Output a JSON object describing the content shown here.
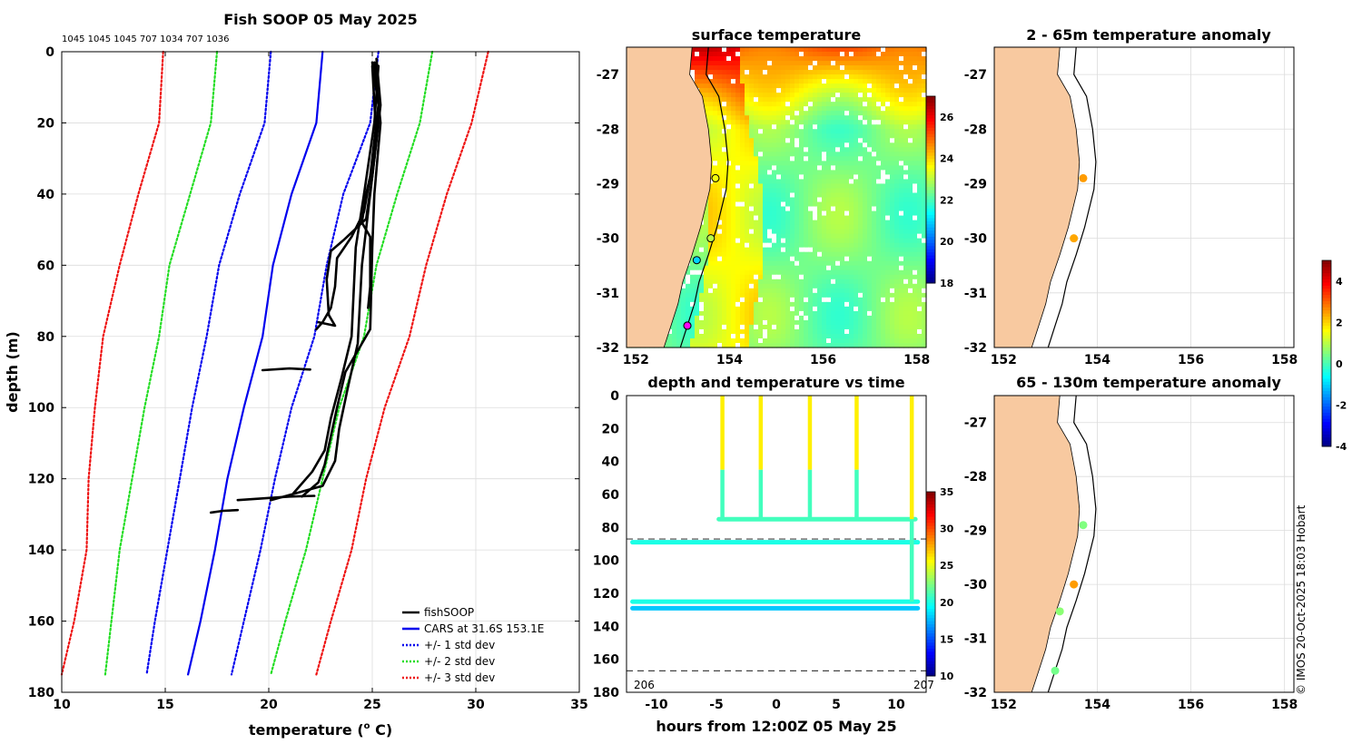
{
  "chart_data": [
    {
      "type": "line",
      "title": "Fish SOOP 05 May 2025",
      "subtitle_ids": "1045 1045 1045 707 1034 707 1036",
      "xlabel": "temperature (",
      "xlabel_sup": "o",
      "xlabel_end": " C)",
      "ylabel": "depth (m)",
      "xlim": [
        10,
        35
      ],
      "ylim": [
        0,
        180
      ],
      "xticks": [
        10,
        15,
        20,
        25,
        30,
        35
      ],
      "yticks": [
        0,
        20,
        40,
        60,
        80,
        100,
        120,
        140,
        160,
        180
      ],
      "legend": [
        "fishSOOP",
        "CARS at 31.6S 153.1E",
        "+/- 1 std dev",
        "+/- 2 std dev",
        "+/- 3 std dev"
      ],
      "colors": {
        "fishSOOP": "#000000",
        "cars": "#0000ee",
        "sd1": "#0000ee",
        "sd2": "#22dd22",
        "sd3": "#ee1111"
      },
      "series": [
        {
          "name": "CARS mean",
          "depth": [
            0,
            20,
            40,
            60,
            80,
            100,
            120,
            140,
            160,
            175
          ],
          "temp": [
            22.6,
            22.3,
            21.1,
            20.2,
            19.7,
            18.8,
            18.0,
            17.4,
            16.7,
            16.1
          ]
        },
        {
          "name": "+1 std",
          "depth": [
            0,
            20,
            40,
            60,
            80,
            100,
            120,
            140,
            160,
            175
          ],
          "temp": [
            25.3,
            24.9,
            23.6,
            22.8,
            22.2,
            21.1,
            20.3,
            19.6,
            18.8,
            18.2
          ]
        },
        {
          "name": "-1 std",
          "depth": [
            0,
            20,
            40,
            60,
            80,
            100,
            120,
            140,
            160,
            175
          ],
          "temp": [
            20.1,
            19.8,
            18.6,
            17.6,
            17.0,
            16.3,
            15.7,
            15.1,
            14.5,
            14.1
          ]
        },
        {
          "name": "+2 std",
          "depth": [
            0,
            20,
            40,
            60,
            80,
            100,
            120,
            140,
            160,
            175
          ],
          "temp": [
            27.9,
            27.3,
            26.2,
            25.2,
            24.6,
            23.4,
            22.6,
            21.8,
            20.8,
            20.1
          ]
        },
        {
          "name": "-2 std",
          "depth": [
            0,
            20,
            40,
            60,
            80,
            100,
            120,
            140,
            160,
            175
          ],
          "temp": [
            17.5,
            17.2,
            16.2,
            15.2,
            14.7,
            14.0,
            13.4,
            12.8,
            12.4,
            12.1
          ]
        },
        {
          "name": "+3 std",
          "depth": [
            0,
            20,
            40,
            60,
            80,
            100,
            120,
            140,
            160,
            175
          ],
          "temp": [
            30.6,
            29.8,
            28.6,
            27.6,
            26.8,
            25.6,
            24.7,
            24.0,
            23.0,
            22.3
          ]
        },
        {
          "name": "-3 std",
          "depth": [
            0,
            20,
            40,
            60,
            80,
            100,
            120,
            140,
            160,
            175
          ],
          "temp": [
            14.9,
            14.7,
            13.7,
            12.8,
            12.0,
            11.6,
            11.3,
            11.2,
            10.6,
            10.0
          ]
        },
        {
          "name": "fishSOOP profile 1",
          "depth": [
            3,
            15,
            35,
            45,
            52,
            58,
            66,
            72,
            76,
            78
          ],
          "temp": [
            25.0,
            25.3,
            24.9,
            24.6,
            24.0,
            23.3,
            23.2,
            23.0,
            22.6,
            22.3
          ]
        },
        {
          "name": "fishSOOP profile 2",
          "depth": [
            2,
            15,
            35,
            47,
            53,
            56,
            64,
            74,
            77,
            76
          ],
          "temp": [
            25.2,
            25.4,
            25.0,
            24.7,
            23.6,
            23.0,
            22.8,
            22.9,
            23.2,
            22.4
          ]
        },
        {
          "name": "fishSOOP profile 3",
          "depth": [
            3,
            15,
            30,
            40,
            48,
            52,
            58,
            66,
            72
          ],
          "temp": [
            25.2,
            25.3,
            25.1,
            24.7,
            24.5,
            24.9,
            24.9,
            24.9,
            24.8
          ]
        },
        {
          "name": "fishSOOP profile 4",
          "depth": [
            3,
            20,
            40,
            55,
            78,
            90,
            100,
            108,
            116,
            121,
            125
          ],
          "temp": [
            25.1,
            25.4,
            25.1,
            25.0,
            24.9,
            23.7,
            23.3,
            23.0,
            22.7,
            22.4,
            21.6
          ]
        },
        {
          "name": "fishSOOP profile 5",
          "depth": [
            4,
            20,
            40,
            55,
            80,
            92,
            103,
            112,
            118,
            124
          ],
          "temp": [
            25.3,
            25.1,
            24.6,
            24.2,
            24.0,
            23.5,
            23.0,
            22.7,
            22.1,
            21.2
          ]
        },
        {
          "name": "fishSOOP profile 6",
          "depth": [
            4,
            25,
            45,
            60,
            82,
            95,
            106,
            115,
            122,
            126
          ],
          "temp": [
            25.0,
            25.2,
            24.8,
            24.5,
            24.3,
            23.8,
            23.4,
            23.2,
            22.6,
            20.1
          ]
        },
        {
          "name": "fishSOOP bottom 89m",
          "depth": [
            89.5,
            89.0,
            89.3
          ],
          "temp": [
            19.7,
            21.0,
            22.0
          ]
        },
        {
          "name": "fishSOOP bottom 125m",
          "depth": [
            126,
            125,
            124.8
          ],
          "temp": [
            18.5,
            21.0,
            22.2
          ]
        },
        {
          "name": "fishSOOP bottom 129m",
          "depth": [
            129.5,
            129.0,
            128.8
          ],
          "temp": [
            17.2,
            17.8,
            18.5
          ]
        }
      ]
    },
    {
      "type": "heatmap",
      "title": "surface temperature",
      "xticks": [
        152,
        154,
        156,
        158
      ],
      "yticks": [
        -27,
        -28,
        -29,
        -30,
        -31,
        -32
      ],
      "xlim": [
        151.8,
        158.2
      ],
      "ylim": [
        -32,
        -26.5
      ],
      "colorbar": {
        "min": 18,
        "max": 27,
        "ticks": [
          18,
          20,
          22,
          24,
          26
        ]
      },
      "stations": [
        {
          "lon": 153.7,
          "lat": -28.9,
          "temp": 23.5
        },
        {
          "lon": 153.6,
          "lat": -30.0,
          "temp": 23.0
        },
        {
          "lon": 153.3,
          "lat": -30.4,
          "temp": 21.0
        },
        {
          "lon": 153.1,
          "lat": -31.6,
          "temp": 22.0
        }
      ]
    },
    {
      "type": "scatter",
      "title": "depth and temperature vs time",
      "xlabel": "hours from 12:00Z 05 May 25",
      "xticks": [
        -10,
        -5,
        0,
        5,
        10
      ],
      "yticks": [
        0,
        20,
        40,
        60,
        80,
        100,
        120,
        140,
        160,
        180
      ],
      "xlim": [
        -12.5,
        12.5
      ],
      "ylim": [
        0,
        180
      ],
      "dashed_depths": [
        87,
        167
      ],
      "day_labels": [
        "206",
        "207"
      ],
      "colorbar": {
        "min": 10,
        "max": 35,
        "ticks": [
          10,
          15,
          20,
          25,
          30,
          35
        ]
      },
      "tracks": [
        {
          "name": "shallow tow",
          "hours": [
            -4.8,
            11.6
          ],
          "depth": 75,
          "temp": 21
        },
        {
          "name": "89m line",
          "hours": [
            -12.0,
            11.8
          ],
          "depth": 89,
          "temp": 20
        },
        {
          "name": "125m line",
          "hours": [
            -12.0,
            11.8
          ],
          "depth": 125,
          "temp": 20
        },
        {
          "name": "129m line",
          "hours": [
            -12.0,
            11.8
          ],
          "depth": 129,
          "temp": 18
        }
      ],
      "casts_hours": [
        -4.5,
        -1.3,
        2.8,
        6.7,
        11.3
      ]
    },
    {
      "type": "scatter",
      "title": "2 - 65m temperature anomaly",
      "xticks": [
        152,
        154,
        156,
        158
      ],
      "yticks": [
        -27,
        -28,
        -29,
        -30,
        -31,
        -32
      ],
      "points": [
        {
          "lon": 153.7,
          "lat": -28.9,
          "anomaly": 2.5
        },
        {
          "lon": 153.5,
          "lat": -30.0,
          "anomaly": 2.4
        }
      ]
    },
    {
      "type": "scatter",
      "title": "65 - 130m temperature anomaly",
      "xticks": [
        152,
        154,
        156,
        158
      ],
      "yticks": [
        -27,
        -28,
        -29,
        -30,
        -31,
        -32
      ],
      "points": [
        {
          "lon": 153.7,
          "lat": -28.9,
          "anomaly": 0.5
        },
        {
          "lon": 153.5,
          "lat": -30.0,
          "anomaly": 2.5
        },
        {
          "lon": 153.2,
          "lat": -30.5,
          "anomaly": 0.6
        },
        {
          "lon": 153.1,
          "lat": -31.6,
          "anomaly": 0.4
        }
      ],
      "colorbar": {
        "min": -4,
        "max": 5,
        "ticks": [
          4,
          2,
          0,
          -2,
          -4
        ]
      }
    }
  ],
  "credit": "© IMOS 20-Oct-2025 18:03 Hobart"
}
